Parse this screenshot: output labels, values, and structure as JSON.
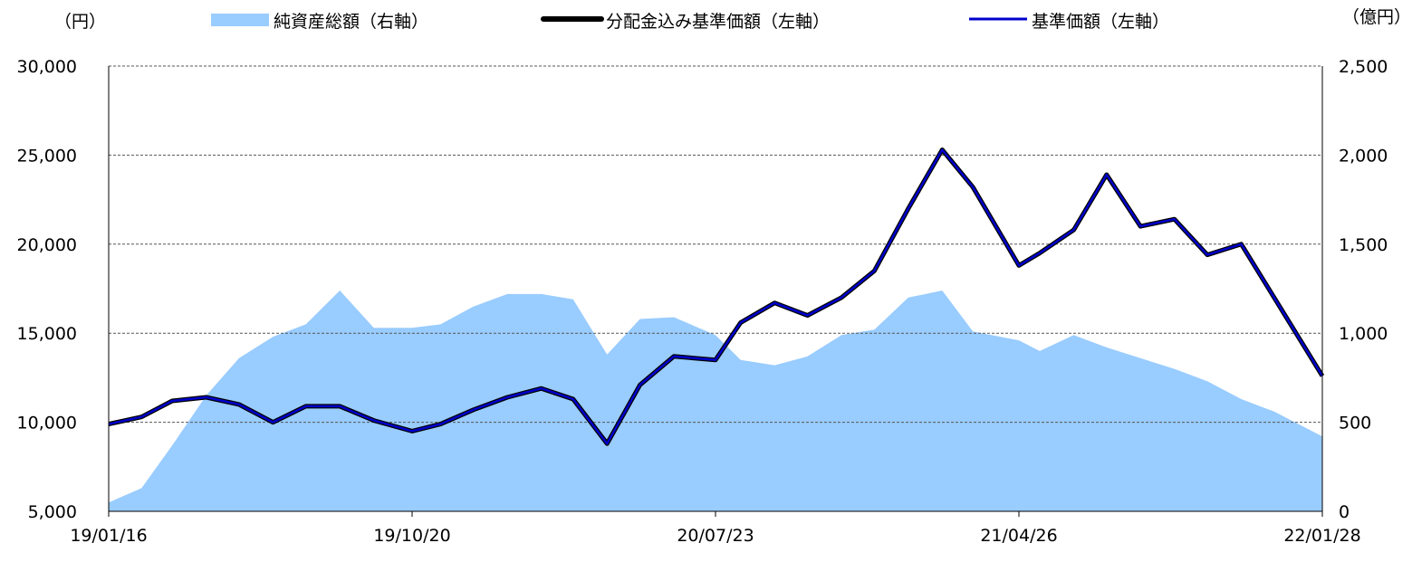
{
  "chart_data": {
    "type": "line",
    "title": "",
    "y_left_unit": "（円）",
    "y_right_unit": "（億円）",
    "x_tick_labels": [
      "19/01/16",
      "19/10/20",
      "20/07/23",
      "21/04/26",
      "22/01/28"
    ],
    "y_left_ticks": [
      "5,000",
      "10,000",
      "15,000",
      "20,000",
      "25,000",
      "30,000"
    ],
    "y_left_lim": [
      5000,
      30000
    ],
    "y_right_ticks": [
      "0",
      "500",
      "1,000",
      "1,500",
      "2,000",
      "2,500"
    ],
    "y_right_lim": [
      0,
      2500
    ],
    "grid": "horizontal dashed",
    "legend_position": "top",
    "colors": {
      "net_assets": "#99ccff",
      "with_dividends": "#000000",
      "nav": "#0000cc"
    },
    "x": [
      "2019-01-16",
      "2019-02-15",
      "2019-03-15",
      "2019-04-15",
      "2019-05-15",
      "2019-06-15",
      "2019-07-15",
      "2019-08-15",
      "2019-09-15",
      "2019-10-20",
      "2019-11-15",
      "2019-12-15",
      "2020-01-15",
      "2020-02-15",
      "2020-03-15",
      "2020-04-15",
      "2020-05-15",
      "2020-06-15",
      "2020-07-23",
      "2020-08-15",
      "2020-09-15",
      "2020-10-15",
      "2020-11-15",
      "2020-12-15",
      "2021-01-15",
      "2021-02-15",
      "2021-03-15",
      "2021-04-26",
      "2021-05-15",
      "2021-06-15",
      "2021-07-15",
      "2021-08-15",
      "2021-09-15",
      "2021-10-15",
      "2021-11-15",
      "2021-12-15",
      "2022-01-28"
    ],
    "series": [
      {
        "name": "純資産総額（右軸）",
        "axis": "right",
        "type": "area",
        "values": [
          50,
          130,
          370,
          650,
          860,
          980,
          1050,
          1240,
          1030,
          1030,
          1050,
          1150,
          1220,
          1220,
          1190,
          880,
          1080,
          1090,
          990,
          850,
          820,
          870,
          990,
          1020,
          1200,
          1240,
          1010,
          960,
          900,
          990,
          920,
          860,
          800,
          730,
          630,
          560,
          420
        ]
      },
      {
        "name": "分配金込み基準価額（左軸）",
        "axis": "left",
        "type": "line",
        "values": [
          9900,
          10300,
          11200,
          11400,
          11000,
          10000,
          10900,
          10900,
          10100,
          9500,
          9900,
          10700,
          11400,
          11900,
          11300,
          8800,
          12100,
          13700,
          13500,
          15600,
          16700,
          16000,
          17000,
          18500,
          22000,
          25300,
          23200,
          18800,
          19500,
          20800,
          23900,
          21000,
          21400,
          19400,
          20000,
          17000,
          12600
        ]
      },
      {
        "name": "基準価額（左軸）",
        "axis": "left",
        "type": "line",
        "values": [
          9900,
          10300,
          11200,
          11400,
          11000,
          10000,
          10900,
          10900,
          10100,
          9500,
          9900,
          10700,
          11400,
          11900,
          11300,
          8800,
          12100,
          13700,
          13500,
          15600,
          16700,
          16000,
          17000,
          18500,
          22000,
          25300,
          23200,
          18800,
          19500,
          20800,
          23900,
          21000,
          21400,
          19400,
          20000,
          17000,
          12600
        ]
      }
    ]
  }
}
